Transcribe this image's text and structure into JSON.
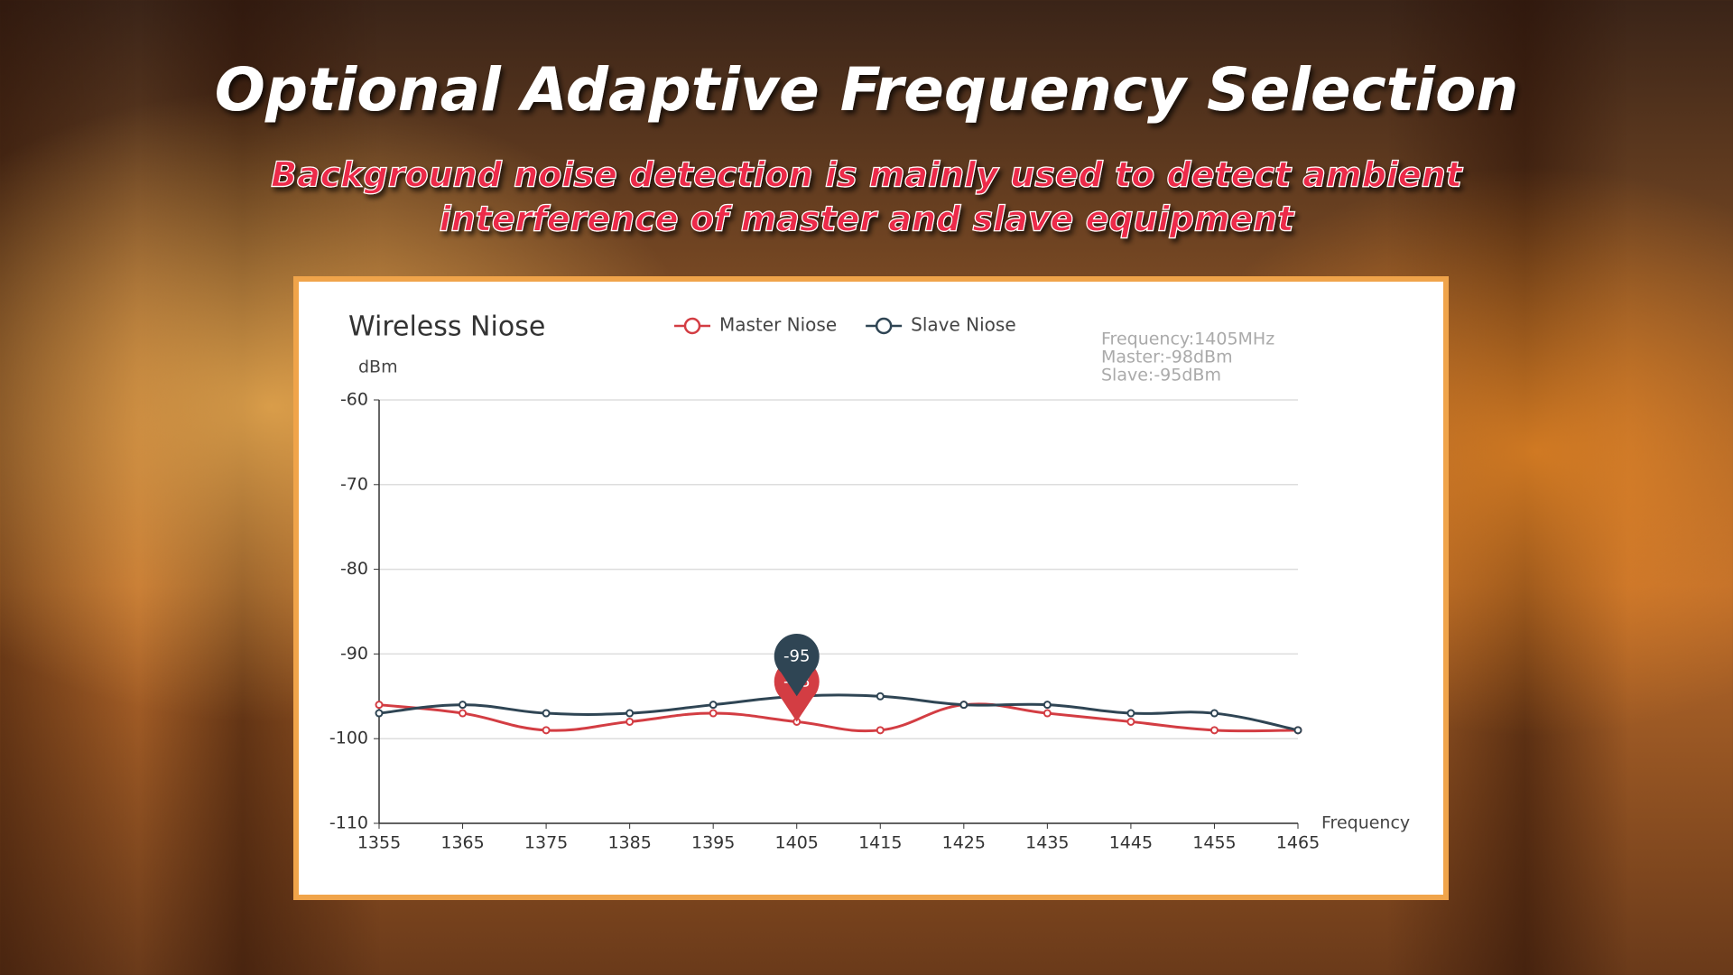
{
  "header": {
    "title": "Optional Adaptive Frequency Selection",
    "subtitle": [
      "Background noise detection is mainly used to detect ambient",
      "interference of master and slave equipment"
    ]
  },
  "chart_data": {
    "type": "line",
    "title": "Wireless Niose",
    "y_label": "dBm",
    "x_label": "Frequency",
    "x": [
      1355,
      1365,
      1375,
      1385,
      1395,
      1405,
      1415,
      1425,
      1435,
      1445,
      1455,
      1465
    ],
    "series": [
      {
        "name": "Master Niose",
        "color": "#d33d43",
        "values": [
          -96,
          -97,
          -99,
          -98,
          -97,
          -98,
          -99,
          -96,
          -97,
          -98,
          -99,
          -99
        ]
      },
      {
        "name": "Slave Niose",
        "color": "#2f4554",
        "values": [
          -97,
          -96,
          -97,
          -97,
          -96,
          -95,
          -95,
          -96,
          -96,
          -97,
          -97,
          -99
        ]
      }
    ],
    "xlim": [
      1355,
      1465
    ],
    "xticks": [
      1355,
      1365,
      1375,
      1385,
      1395,
      1405,
      1415,
      1425,
      1435,
      1445,
      1455,
      1465
    ],
    "ylim": [
      -110,
      -60
    ],
    "yticks": [
      -60,
      -70,
      -80,
      -90,
      -100,
      -110
    ],
    "grid": true,
    "highlight_index": 5,
    "tooltip": [
      "Frequency:1405MHz",
      "Master:-98dBm",
      "Slave:-95dBm"
    ]
  }
}
